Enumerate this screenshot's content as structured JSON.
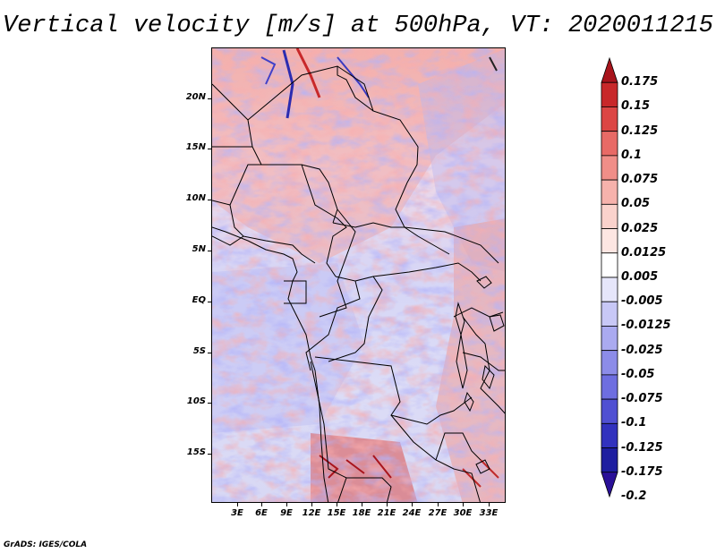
{
  "title": "Vertical velocity [m/s] at 500hPa, VT: 2020011215",
  "credit": "GrADS: IGES/COLA",
  "map": {
    "lat_labels": [
      "20N",
      "15N",
      "10N",
      "5N",
      "EQ",
      "5S",
      "10S",
      "15S"
    ],
    "lon_labels": [
      "3E",
      "6E",
      "9E",
      "12E",
      "15E",
      "18E",
      "21E",
      "24E",
      "27E",
      "30E",
      "33E"
    ]
  },
  "colorbar": {
    "labels": [
      "0.175",
      "0.15",
      "0.125",
      "0.1",
      "0.075",
      "0.05",
      "0.025",
      "0.0125",
      "0.005",
      "-0.005",
      "-0.0125",
      "-0.025",
      "-0.05",
      "-0.075",
      "-0.1",
      "-0.125",
      "-0.175",
      "-0.2"
    ],
    "colors": [
      "#a8141c",
      "#c8282a",
      "#dc4644",
      "#e86a66",
      "#f08e88",
      "#f6b2ac",
      "#fad2cc",
      "#fde6e2",
      "#ffffff",
      "#e6e6fa",
      "#c8c8f6",
      "#aaaaf0",
      "#8c8ce8",
      "#6e6ee0",
      "#5050d2",
      "#3232be",
      "#1e1ea0",
      "#2a1098"
    ]
  }
}
